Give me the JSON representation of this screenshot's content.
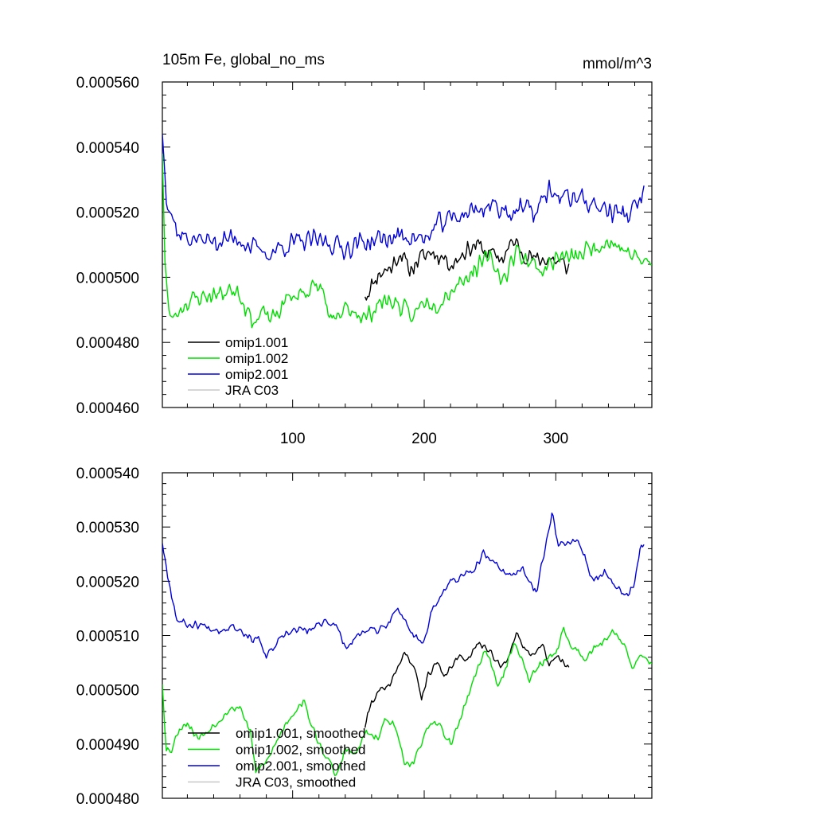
{
  "chart_data": [
    {
      "type": "line",
      "title": "105m Fe, global_no_ms",
      "units": "mmol/m^3",
      "xlim": [
        1,
        373
      ],
      "ylim": [
        0.00046,
        0.00056
      ],
      "yticks": [
        0.00046,
        0.00048,
        0.0005,
        0.00052,
        0.00054,
        0.00056
      ],
      "ytick_labels": [
        "0.000460",
        "0.000480",
        "0.000500",
        "0.000520",
        "0.000540",
        "0.000560"
      ],
      "xticks": [
        100,
        200,
        300
      ],
      "xtick_labels": [
        "100",
        "200",
        "300"
      ],
      "legend_location": "lower-left",
      "series": [
        {
          "name": "omip1.001",
          "color": "#000000",
          "x_start": 155,
          "x_end": 310,
          "anchors": [
            [
              155,
              0.000494
            ],
            [
              165,
              0.000501
            ],
            [
              175,
              0.000503
            ],
            [
              182,
              0.000508
            ],
            [
              188,
              0.000502
            ],
            [
              195,
              0.000505
            ],
            [
              205,
              0.000508
            ],
            [
              215,
              0.000506
            ],
            [
              222,
              0.000504
            ],
            [
              230,
              0.000508
            ],
            [
              240,
              0.00051
            ],
            [
              250,
              0.000507
            ],
            [
              260,
              0.000506
            ],
            [
              268,
              0.000511
            ],
            [
              275,
              0.000508
            ],
            [
              285,
              0.000505
            ],
            [
              295,
              0.000506
            ],
            [
              300,
              0.000505
            ],
            [
              310,
              0.000503
            ]
          ],
          "noise": 3.5e-06,
          "seed": 11
        },
        {
          "name": "omip1.002",
          "color": "#00dd00",
          "x_start": 1,
          "x_end": 373,
          "anchors": [
            [
              1,
              0.000538
            ],
            [
              3,
              0.000505
            ],
            [
              6,
              0.000488
            ],
            [
              10,
              0.000488
            ],
            [
              18,
              0.000492
            ],
            [
              30,
              0.000494
            ],
            [
              45,
              0.000495
            ],
            [
              58,
              0.000497
            ],
            [
              65,
              0.00049
            ],
            [
              72,
              0.000486
            ],
            [
              78,
              0.000489
            ],
            [
              85,
              0.000487
            ],
            [
              95,
              0.000493
            ],
            [
              110,
              0.000496
            ],
            [
              122,
              0.000497
            ],
            [
              130,
              0.000485
            ],
            [
              140,
              0.00049
            ],
            [
              148,
              0.00049
            ],
            [
              155,
              0.000487
            ],
            [
              165,
              0.000492
            ],
            [
              175,
              0.000493
            ],
            [
              185,
              0.00049
            ],
            [
              190,
              0.000487
            ],
            [
              200,
              0.000493
            ],
            [
              210,
              0.000492
            ],
            [
              220,
              0.000496
            ],
            [
              228,
              0.000499
            ],
            [
              240,
              0.000503
            ],
            [
              250,
              0.000506
            ],
            [
              260,
              0.000499
            ],
            [
              270,
              0.000508
            ],
            [
              280,
              0.000505
            ],
            [
              290,
              0.000502
            ],
            [
              300,
              0.000506
            ],
            [
              315,
              0.000506
            ],
            [
              330,
              0.00051
            ],
            [
              340,
              0.000511
            ],
            [
              350,
              0.000509
            ],
            [
              360,
              0.000506
            ],
            [
              373,
              0.000504
            ]
          ],
          "noise": 3.5e-06,
          "seed": 23
        },
        {
          "name": "omip2.001",
          "color": "#0000dd",
          "x_start": 1,
          "x_end": 367,
          "anchors": [
            [
              1,
              0.000544
            ],
            [
              4,
              0.000526
            ],
            [
              8,
              0.00052
            ],
            [
              12,
              0.000514
            ],
            [
              20,
              0.000512
            ],
            [
              40,
              0.000511
            ],
            [
              60,
              0.000512
            ],
            [
              70,
              0.000509
            ],
            [
              80,
              0.000507
            ],
            [
              95,
              0.00051
            ],
            [
              110,
              0.000511
            ],
            [
              125,
              0.000511
            ],
            [
              140,
              0.000509
            ],
            [
              155,
              0.000511
            ],
            [
              175,
              0.000512
            ],
            [
              190,
              0.000513
            ],
            [
              200,
              0.000511
            ],
            [
              210,
              0.000516
            ],
            [
              220,
              0.000518
            ],
            [
              240,
              0.000521
            ],
            [
              255,
              0.000522
            ],
            [
              265,
              0.00052
            ],
            [
              275,
              0.000521
            ],
            [
              285,
              0.00052
            ],
            [
              295,
              0.000527
            ],
            [
              305,
              0.000524
            ],
            [
              315,
              0.000525
            ],
            [
              330,
              0.000522
            ],
            [
              345,
              0.00052
            ],
            [
              355,
              0.000519
            ],
            [
              362,
              0.000522
            ],
            [
              367,
              0.000526
            ]
          ],
          "noise": 4e-06,
          "seed": 37
        },
        {
          "name": "JRA C03",
          "color": "#c8c8c8",
          "x_start": null,
          "x_end": null,
          "anchors": [],
          "noise": 0,
          "seed": 0
        }
      ]
    },
    {
      "type": "line",
      "title": "",
      "xlim": [
        1,
        373
      ],
      "ylim": [
        0.00048,
        0.00054
      ],
      "yticks": [
        0.00048,
        0.00049,
        0.0005,
        0.00051,
        0.00052,
        0.00053,
        0.00054
      ],
      "ytick_labels": [
        "0.000480",
        "0.000490",
        "0.000500",
        "0.000510",
        "0.000520",
        "0.000530",
        "0.000540"
      ],
      "xticks": [
        100,
        200,
        300
      ],
      "xtick_labels": [],
      "legend_location": "lower-left",
      "series": [
        {
          "name": "omip1.001, smoothed",
          "color": "#000000",
          "x_start": 155,
          "x_end": 310,
          "anchors": [
            [
              155,
              0.000493
            ],
            [
              160,
              0.000498
            ],
            [
              167,
              0.0005
            ],
            [
              172,
              0.0005
            ],
            [
              178,
              0.000503
            ],
            [
              185,
              0.000507
            ],
            [
              190,
              0.000505
            ],
            [
              195,
              0.000502
            ],
            [
              198,
              0.000498
            ],
            [
              203,
              0.000503
            ],
            [
              210,
              0.000505
            ],
            [
              215,
              0.000502
            ],
            [
              222,
              0.000505
            ],
            [
              228,
              0.000506
            ],
            [
              235,
              0.000506
            ],
            [
              240,
              0.000509
            ],
            [
              245,
              0.000508
            ],
            [
              250,
              0.000507
            ],
            [
              258,
              0.000504
            ],
            [
              263,
              0.000506
            ],
            [
              270,
              0.00051
            ],
            [
              278,
              0.000507
            ],
            [
              283,
              0.000507
            ],
            [
              290,
              0.000508
            ],
            [
              295,
              0.000505
            ],
            [
              300,
              0.000506
            ],
            [
              306,
              0.000505
            ],
            [
              310,
              0.000504
            ]
          ],
          "noise": 8e-07,
          "seed": 41
        },
        {
          "name": "omip1.002, smoothed",
          "color": "#00dd00",
          "x_start": 1,
          "x_end": 373,
          "anchors": [
            [
              1,
              0.000501
            ],
            [
              4,
              0.000489
            ],
            [
              8,
              0.000489
            ],
            [
              14,
              0.000493
            ],
            [
              20,
              0.000494
            ],
            [
              28,
              0.000491
            ],
            [
              38,
              0.000493
            ],
            [
              50,
              0.000496
            ],
            [
              60,
              0.000497
            ],
            [
              68,
              0.000492
            ],
            [
              72,
              0.000485
            ],
            [
              78,
              0.000486
            ],
            [
              85,
              0.000489
            ],
            [
              95,
              0.000494
            ],
            [
              108,
              0.000498
            ],
            [
              118,
              0.000491
            ],
            [
              125,
              0.000488
            ],
            [
              133,
              0.000484
            ],
            [
              140,
              0.000489
            ],
            [
              148,
              0.000488
            ],
            [
              155,
              0.000492
            ],
            [
              165,
              0.000491
            ],
            [
              172,
              0.000495
            ],
            [
              178,
              0.000493
            ],
            [
              185,
              0.000487
            ],
            [
              192,
              0.000486
            ],
            [
              200,
              0.000492
            ],
            [
              210,
              0.000494
            ],
            [
              220,
              0.00049
            ],
            [
              228,
              0.000495
            ],
            [
              235,
              0.0005
            ],
            [
              245,
              0.000507
            ],
            [
              250,
              0.000506
            ],
            [
              256,
              0.0005
            ],
            [
              262,
              0.000504
            ],
            [
              268,
              0.000509
            ],
            [
              275,
              0.000505
            ],
            [
              280,
              0.000502
            ],
            [
              290,
              0.000505
            ],
            [
              300,
              0.000507
            ],
            [
              306,
              0.000511
            ],
            [
              312,
              0.000508
            ],
            [
              322,
              0.000506
            ],
            [
              332,
              0.000508
            ],
            [
              340,
              0.00051
            ],
            [
              345,
              0.000511
            ],
            [
              352,
              0.000508
            ],
            [
              358,
              0.000504
            ],
            [
              365,
              0.000506
            ],
            [
              373,
              0.000505
            ]
          ],
          "noise": 9e-07,
          "seed": 53
        },
        {
          "name": "omip2.001, smoothed",
          "color": "#0000dd",
          "x_start": 1,
          "x_end": 367,
          "anchors": [
            [
              1,
              0.000527
            ],
            [
              6,
              0.00052
            ],
            [
              12,
              0.000513
            ],
            [
              20,
              0.000512
            ],
            [
              30,
              0.000512
            ],
            [
              45,
              0.000511
            ],
            [
              55,
              0.000512
            ],
            [
              65,
              0.00051
            ],
            [
              75,
              0.000509
            ],
            [
              80,
              0.000506
            ],
            [
              90,
              0.000509
            ],
            [
              100,
              0.000511
            ],
            [
              115,
              0.000511
            ],
            [
              125,
              0.000513
            ],
            [
              135,
              0.000511
            ],
            [
              140,
              0.000508
            ],
            [
              150,
              0.00051
            ],
            [
              160,
              0.000511
            ],
            [
              170,
              0.000511
            ],
            [
              178,
              0.000515
            ],
            [
              185,
              0.000513
            ],
            [
              192,
              0.00051
            ],
            [
              200,
              0.000509
            ],
            [
              205,
              0.000514
            ],
            [
              212,
              0.000517
            ],
            [
              220,
              0.00052
            ],
            [
              230,
              0.000521
            ],
            [
              238,
              0.000522
            ],
            [
              245,
              0.000525
            ],
            [
              255,
              0.000523
            ],
            [
              265,
              0.000521
            ],
            [
              275,
              0.000522
            ],
            [
              285,
              0.000518
            ],
            [
              292,
              0.000526
            ],
            [
              297,
              0.000533
            ],
            [
              302,
              0.000527
            ],
            [
              310,
              0.000527
            ],
            [
              318,
              0.000527
            ],
            [
              325,
              0.000522
            ],
            [
              332,
              0.00052
            ],
            [
              337,
              0.000522
            ],
            [
              343,
              0.00052
            ],
            [
              350,
              0.000518
            ],
            [
              356,
              0.000518
            ],
            [
              360,
              0.00052
            ],
            [
              364,
              0.000526
            ],
            [
              367,
              0.000527
            ]
          ],
          "noise": 9e-07,
          "seed": 67
        },
        {
          "name": "JRA C03, smoothed",
          "color": "#c8c8c8",
          "x_start": null,
          "x_end": null,
          "anchors": [],
          "noise": 0,
          "seed": 0
        }
      ]
    }
  ]
}
